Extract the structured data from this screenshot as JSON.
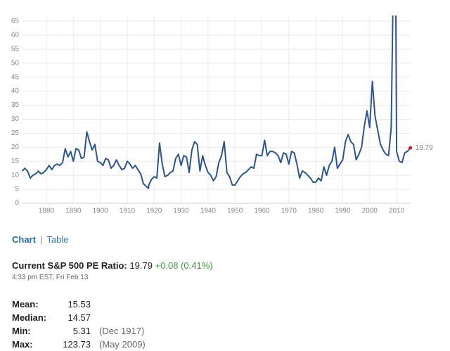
{
  "chart_data": {
    "type": "line",
    "series": [
      {
        "color": "#2c5590",
        "x": [
          1871,
          1872,
          1873,
          1874,
          1875,
          1876,
          1877,
          1878,
          1879,
          1880,
          1881,
          1882,
          1883,
          1884,
          1885,
          1886,
          1887,
          1888,
          1889,
          1890,
          1891,
          1892,
          1893,
          1894,
          1895,
          1896,
          1897,
          1898,
          1899,
          1900,
          1901,
          1902,
          1903,
          1904,
          1905,
          1906,
          1907,
          1908,
          1909,
          1910,
          1911,
          1912,
          1913,
          1914,
          1915,
          1916,
          1917.9,
          1918,
          1919,
          1920,
          1921,
          1922,
          1923,
          1924,
          1925,
          1926,
          1927,
          1928,
          1929,
          1930,
          1931,
          1932,
          1933,
          1934,
          1935,
          1936,
          1937,
          1938,
          1939,
          1940,
          1941,
          1942,
          1943,
          1944,
          1945,
          1946,
          1947,
          1948,
          1949,
          1950,
          1951,
          1952,
          1953,
          1954,
          1955,
          1956,
          1957,
          1958,
          1959,
          1960,
          1961,
          1962,
          1963,
          1964,
          1965,
          1966,
          1967,
          1968,
          1969,
          1970,
          1971,
          1972,
          1973,
          1974,
          1975,
          1976,
          1977,
          1978,
          1979,
          1980,
          1981,
          1982,
          1983,
          1984,
          1985,
          1986,
          1987,
          1988,
          1989,
          1990,
          1991,
          1992,
          1993,
          1994,
          1995,
          1996,
          1997,
          1998,
          1999,
          2000,
          2001,
          2002,
          2003,
          2004,
          2005,
          2006,
          2007,
          2008,
          2009.4,
          2010,
          2011,
          2012,
          2013,
          2014,
          2015.1
        ],
        "values": [
          11.5,
          12.5,
          11.5,
          9,
          10,
          10.5,
          11.5,
          10.5,
          11,
          12,
          13.5,
          12,
          13.5,
          14,
          13.5,
          14.5,
          19.5,
          16.5,
          18.5,
          15,
          19.5,
          19,
          16,
          16.5,
          25.5,
          22,
          19,
          21,
          15,
          14.5,
          13.5,
          16,
          15.5,
          12.5,
          13.5,
          15.5,
          13.5,
          12,
          12.5,
          15,
          14,
          12.5,
          13.5,
          12,
          10.5,
          7,
          5.31,
          6.5,
          8.5,
          9.5,
          9,
          21.5,
          14,
          9.5,
          10,
          11,
          11.5,
          16,
          17.5,
          13.5,
          17,
          16.5,
          11,
          19,
          22,
          21,
          11.5,
          17,
          13.5,
          11,
          10,
          8,
          9.5,
          14.5,
          17,
          22,
          11,
          9.5,
          6.5,
          6.5,
          8,
          9.5,
          10.5,
          11,
          12,
          13,
          12.5,
          17.5,
          17,
          17,
          22.5,
          17,
          18.5,
          18.5,
          18,
          17,
          14.5,
          18,
          17.5,
          14,
          18.5,
          18,
          14,
          9,
          11.5,
          11,
          10,
          9,
          7.5,
          7.5,
          9,
          8,
          13,
          10,
          13.5,
          15,
          20,
          12.5,
          14,
          15.5,
          22,
          24.5,
          22,
          21,
          15.5,
          17.5,
          20,
          27.5,
          33,
          27,
          43.5,
          31,
          26,
          21,
          19,
          17.5,
          17,
          27,
          123.73,
          18.5,
          15,
          14.5,
          18,
          18.5,
          19.79
        ]
      }
    ],
    "xlim": [
      1871,
      2015.2
    ],
    "xticks": [
      1880,
      1890,
      1900,
      1910,
      1920,
      1930,
      1940,
      1950,
      1960,
      1970,
      1980,
      1990,
      2000,
      2010
    ],
    "ylim": [
      0,
      67
    ],
    "yticks": [
      0,
      5,
      10,
      15,
      20,
      25,
      30,
      35,
      40,
      45,
      50,
      55,
      60,
      65
    ],
    "grid": true,
    "last_point_color": "#d7191c"
  },
  "tabs": [
    "Chart",
    "Table"
  ],
  "current": {
    "label": "Current S&P 500 PE Ratio:",
    "value": 19.79,
    "change": "+0.08 (0.41%)",
    "time": "4:33 pm EST, Fri Feb 13"
  },
  "stats": [
    {
      "label": "Mean:",
      "value": 15.53
    },
    {
      "label": "Median:",
      "value": 14.57
    },
    {
      "label": "Min:",
      "value": 5.31,
      "date": "(Dec 1917)"
    },
    {
      "label": "Max:",
      "value": 123.73,
      "date": "(May 2009)"
    }
  ]
}
